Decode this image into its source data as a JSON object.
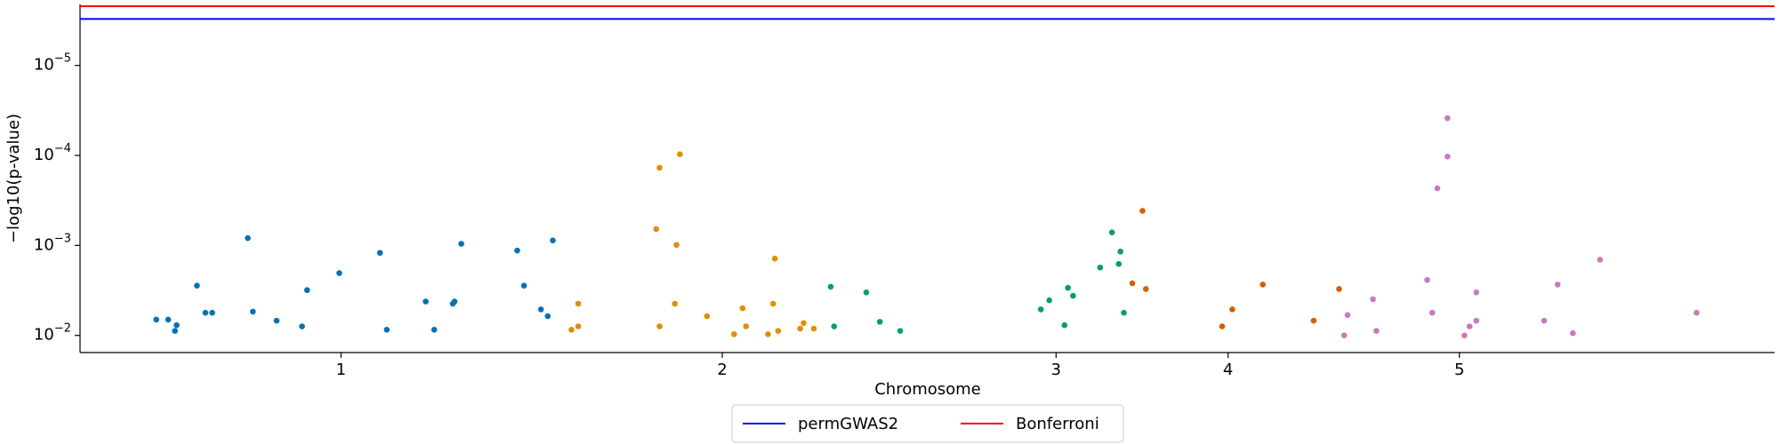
{
  "chart_data": {
    "type": "scatter",
    "y_label": "−log10(p-value)",
    "x_label": "Chromosome",
    "log_y": true,
    "xlim": [
      0,
      100
    ],
    "ylim": [
      0.0155,
      2.1e-06
    ],
    "xticks": [
      {
        "value": 15.4,
        "label": "1"
      },
      {
        "value": 37.9,
        "label": "2"
      },
      {
        "value": 57.6,
        "label": "3"
      },
      {
        "value": 67.75,
        "label": "4"
      },
      {
        "value": 81.4,
        "label": "5"
      }
    ],
    "yticks": [
      {
        "value": 1e-05,
        "label": "10^−5"
      },
      {
        "value": 0.0001,
        "label": "10^−4"
      },
      {
        "value": 0.001,
        "label": "10^−3"
      },
      {
        "value": 0.01,
        "label": "10^−2"
      }
    ],
    "series": [
      {
        "color": "#0173b2",
        "x": [
          4.5,
          5.2,
          5.6,
          5.7,
          6.9,
          7.4,
          7.8,
          9.9,
          10.2,
          11.6,
          13.1,
          13.4,
          15.3,
          17.7,
          18.1,
          20.4,
          20.9,
          22.0,
          22.1,
          22.5,
          25.8,
          26.2,
          27.2,
          27.6,
          27.9
        ],
        "values": [
          0.00667,
          0.00667,
          0.00891,
          0.0077,
          0.0028,
          0.0056,
          0.0056,
          0.00083,
          0.00544,
          0.00686,
          0.00794,
          0.00314,
          0.00203,
          0.00121,
          0.00865,
          0.0042,
          0.00865,
          0.00445,
          0.0042,
          0.00096,
          0.00114,
          0.0028,
          0.00514,
          0.00611,
          0.00088
        ]
      },
      {
        "color": "#de8f05",
        "x": [
          29.0,
          29.4,
          29.4,
          34.0,
          34.2,
          34.2,
          35.1,
          35.2,
          35.4,
          37.0,
          38.6,
          39.1,
          39.3,
          40.6,
          40.9,
          41.0,
          41.2,
          42.5,
          42.7,
          43.3
        ],
        "values": [
          0.00865,
          0.00445,
          0.00794,
          0.000658,
          0.000137,
          0.00794,
          0.00445,
          0.000986,
          9.7e-05,
          0.00611,
          0.0097,
          0.00499,
          0.00794,
          0.0097,
          0.00445,
          0.0014,
          0.00891,
          0.0084,
          0.00728,
          0.0084
        ]
      },
      {
        "color": "#029e73",
        "x": [
          44.3,
          44.5,
          46.4,
          47.2,
          48.4,
          56.7,
          57.2,
          58.1,
          58.3,
          58.6,
          60.2,
          60.9,
          61.3,
          61.4,
          61.6
        ],
        "values": [
          0.00288,
          0.00794,
          0.00333,
          0.00706,
          0.00891,
          0.00514,
          0.00407,
          0.0077,
          0.00296,
          0.00363,
          0.00176,
          0.000716,
          0.00161,
          0.00117,
          0.0056
        ]
      },
      {
        "color": "#d55e00",
        "x": [
          62.1,
          62.7,
          62.9,
          67.4,
          68.0,
          69.8,
          72.8,
          74.3
        ],
        "values": [
          0.00264,
          0.000413,
          0.00305,
          0.00794,
          0.00514,
          0.00272,
          0.00686,
          0.00305
        ]
      },
      {
        "color": "#cc78bc",
        "x": [
          74.6,
          74.8,
          76.3,
          76.5,
          79.5,
          79.8,
          80.1,
          80.7,
          80.7,
          81.7,
          82.0,
          82.4,
          82.4,
          86.4,
          87.2,
          88.1,
          89.7,
          95.4
        ],
        "values": [
          0.01,
          0.00594,
          0.00396,
          0.00891,
          0.00242,
          0.0056,
          0.000232,
          3.85e-05,
          0.000103,
          0.01,
          0.00794,
          0.00333,
          0.00686,
          0.00686,
          0.00272,
          0.00944,
          0.00144,
          0.0056
        ]
      }
    ],
    "thresholds": [
      {
        "name": "permGWAS2",
        "color": "#0000ff",
        "value": 3.05e-06
      },
      {
        "name": "Bonferroni",
        "color": "#ff0000",
        "value": 2.2e-06
      }
    ],
    "legend": "bottom"
  }
}
